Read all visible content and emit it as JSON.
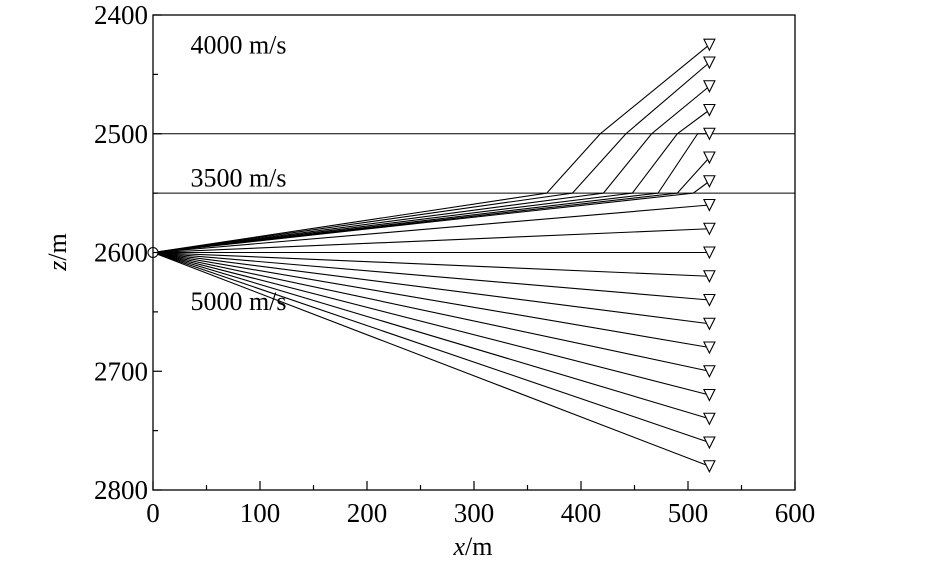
{
  "chart_data": {
    "type": "line",
    "title": "",
    "xlabel_var": "x",
    "xlabel_unit": "/m",
    "ylabel_var": "z",
    "ylabel_unit": "/m",
    "xlim": [
      0,
      600
    ],
    "ylim": [
      2400,
      2800
    ],
    "y_inverted": true,
    "x_ticks": [
      0,
      100,
      200,
      300,
      400,
      500,
      600
    ],
    "x_tick_labels": [
      "0",
      "100",
      "200",
      "300",
      "400",
      "500",
      "600"
    ],
    "y_ticks": [
      2400,
      2500,
      2600,
      2700,
      2800
    ],
    "y_tick_labels": [
      "2400",
      "2500",
      "2600",
      "2700",
      "2800"
    ],
    "grid": false,
    "legend": "none",
    "interfaces": [
      2500,
      2550
    ],
    "layer_labels": [
      {
        "text": "4000 m/s",
        "x": 35,
        "z": 2425
      },
      {
        "text": "3500 m/s",
        "x": 35,
        "z": 2537
      },
      {
        "text": "5000 m/s",
        "x": 35,
        "z": 2641
      }
    ],
    "source": {
      "x": 0,
      "z": 2600
    },
    "receiver_x": 520,
    "refracted_rays": [
      {
        "receiver_z": 2425,
        "cross_2550_x": 368,
        "cross_2500_x": 418
      },
      {
        "receiver_z": 2440,
        "cross_2550_x": 392,
        "cross_2500_x": 442
      },
      {
        "receiver_z": 2460,
        "cross_2550_x": 421,
        "cross_2500_x": 466
      },
      {
        "receiver_z": 2480,
        "cross_2550_x": 448,
        "cross_2500_x": 490
      },
      {
        "receiver_z": 2500,
        "cross_2550_x": 472,
        "cross_2500_x": 509
      },
      {
        "receiver_z": 2520,
        "cross_2550_x": 490
      },
      {
        "receiver_z": 2540,
        "cross_2550_x": 505
      }
    ],
    "direct_receivers_z": [
      2560,
      2580,
      2600,
      2620,
      2640,
      2660,
      2680,
      2700,
      2720,
      2740,
      2760,
      2780
    ]
  },
  "colors": {
    "line": "#000000",
    "background": "#ffffff"
  }
}
